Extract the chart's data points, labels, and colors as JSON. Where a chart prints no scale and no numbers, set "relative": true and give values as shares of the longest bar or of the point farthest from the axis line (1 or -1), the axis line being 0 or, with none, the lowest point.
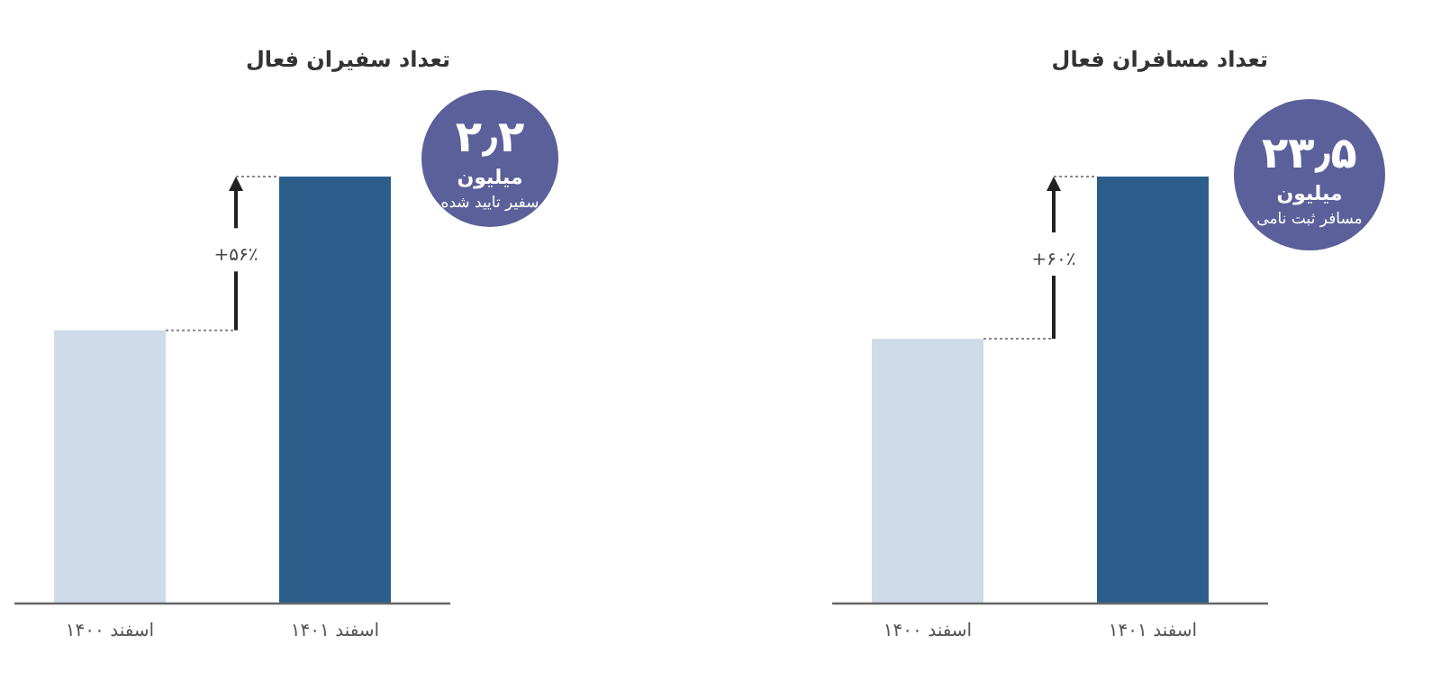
{
  "chart_data": [
    {
      "type": "bar",
      "title": "تعداد سفیران فعال",
      "categories": [
        "اسفند ۱۴۰۰",
        "اسفند ۱۴۰۱"
      ],
      "values": [
        0.64,
        1
      ],
      "colors": [
        "#d0dbea",
        "#2c5e8c"
      ],
      "relative": true,
      "annotations": [
        "۲٫۲",
        "میلیون",
        "سفیر تایید شده",
        "+۵۶٪"
      ]
    },
    {
      "type": "bar",
      "title": "تعداد مسافران فعال",
      "categories": [
        "اسفند ۱۴۰۰",
        "اسفند ۱۴۰۱"
      ],
      "values": [
        0.62,
        1
      ],
      "colors": [
        "#d0dbea",
        "#2c5e8c"
      ],
      "relative": true,
      "annotations": [
        "۲۳٫۵",
        "میلیون",
        "مسافر ثبت نامی",
        "+۶۰٪"
      ]
    }
  ]
}
